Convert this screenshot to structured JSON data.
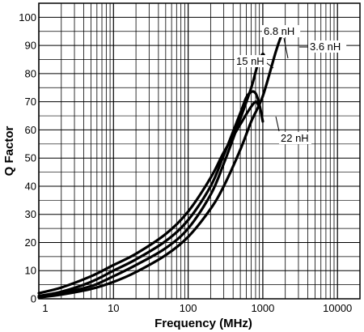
{
  "chart_data": {
    "type": "line",
    "title": "",
    "xlabel": "Frequency (MHz)",
    "ylabel": "Q Factor",
    "x_scale": "log",
    "xlim": [
      1,
      20000
    ],
    "ylim": [
      0,
      105
    ],
    "grid": true,
    "x_ticks": [
      1,
      10,
      100,
      1000,
      10000
    ],
    "x_tick_labels": [
      "1",
      "10",
      "100",
      "1000",
      "10000"
    ],
    "y_ticks": [
      0,
      10,
      20,
      30,
      40,
      50,
      60,
      70,
      80,
      90,
      100
    ],
    "y_tick_labels": [
      "0",
      "10",
      "20",
      "30",
      "40",
      "50",
      "60",
      "70",
      "80",
      "90",
      "100"
    ],
    "series": [
      {
        "name": "3.6 nH",
        "x": [
          1,
          2,
          5,
          10,
          20,
          50,
          100,
          200,
          300,
          500,
          700,
          1000,
          1500,
          1800
        ],
        "y": [
          0.5,
          1.5,
          3.5,
          6,
          9.5,
          15.5,
          22,
          32,
          40,
          53,
          63,
          72,
          88,
          94
        ]
      },
      {
        "name": "6.8 nH",
        "x": [
          1,
          2,
          5,
          10,
          20,
          50,
          100,
          200,
          300,
          500,
          700,
          850,
          1000,
          1100
        ],
        "y": [
          0.7,
          2,
          4.5,
          8,
          12,
          18,
          25,
          37,
          48,
          64,
          75,
          83,
          87,
          84
        ]
      },
      {
        "name": "15 nH",
        "x": [
          1,
          2,
          5,
          10,
          20,
          50,
          100,
          200,
          300,
          500,
          600,
          700,
          800,
          900,
          1000
        ],
        "y": [
          1,
          2.5,
          6,
          10,
          14,
          20.5,
          28,
          40,
          51,
          66,
          71.5,
          73.5,
          73,
          69,
          63
        ]
      },
      {
        "name": "22 nH",
        "x": [
          1,
          2,
          5,
          10,
          20,
          50,
          100,
          200,
          300,
          500,
          650,
          800,
          900
        ],
        "y": [
          2,
          4,
          8,
          12,
          16,
          23,
          31,
          43,
          52,
          62,
          67,
          70,
          68
        ]
      }
    ],
    "annotations": [
      {
        "text": "6.8 nH"
      },
      {
        "text": "3.6 nH"
      },
      {
        "text": "15 nH"
      },
      {
        "text": "22 nH"
      }
    ]
  }
}
